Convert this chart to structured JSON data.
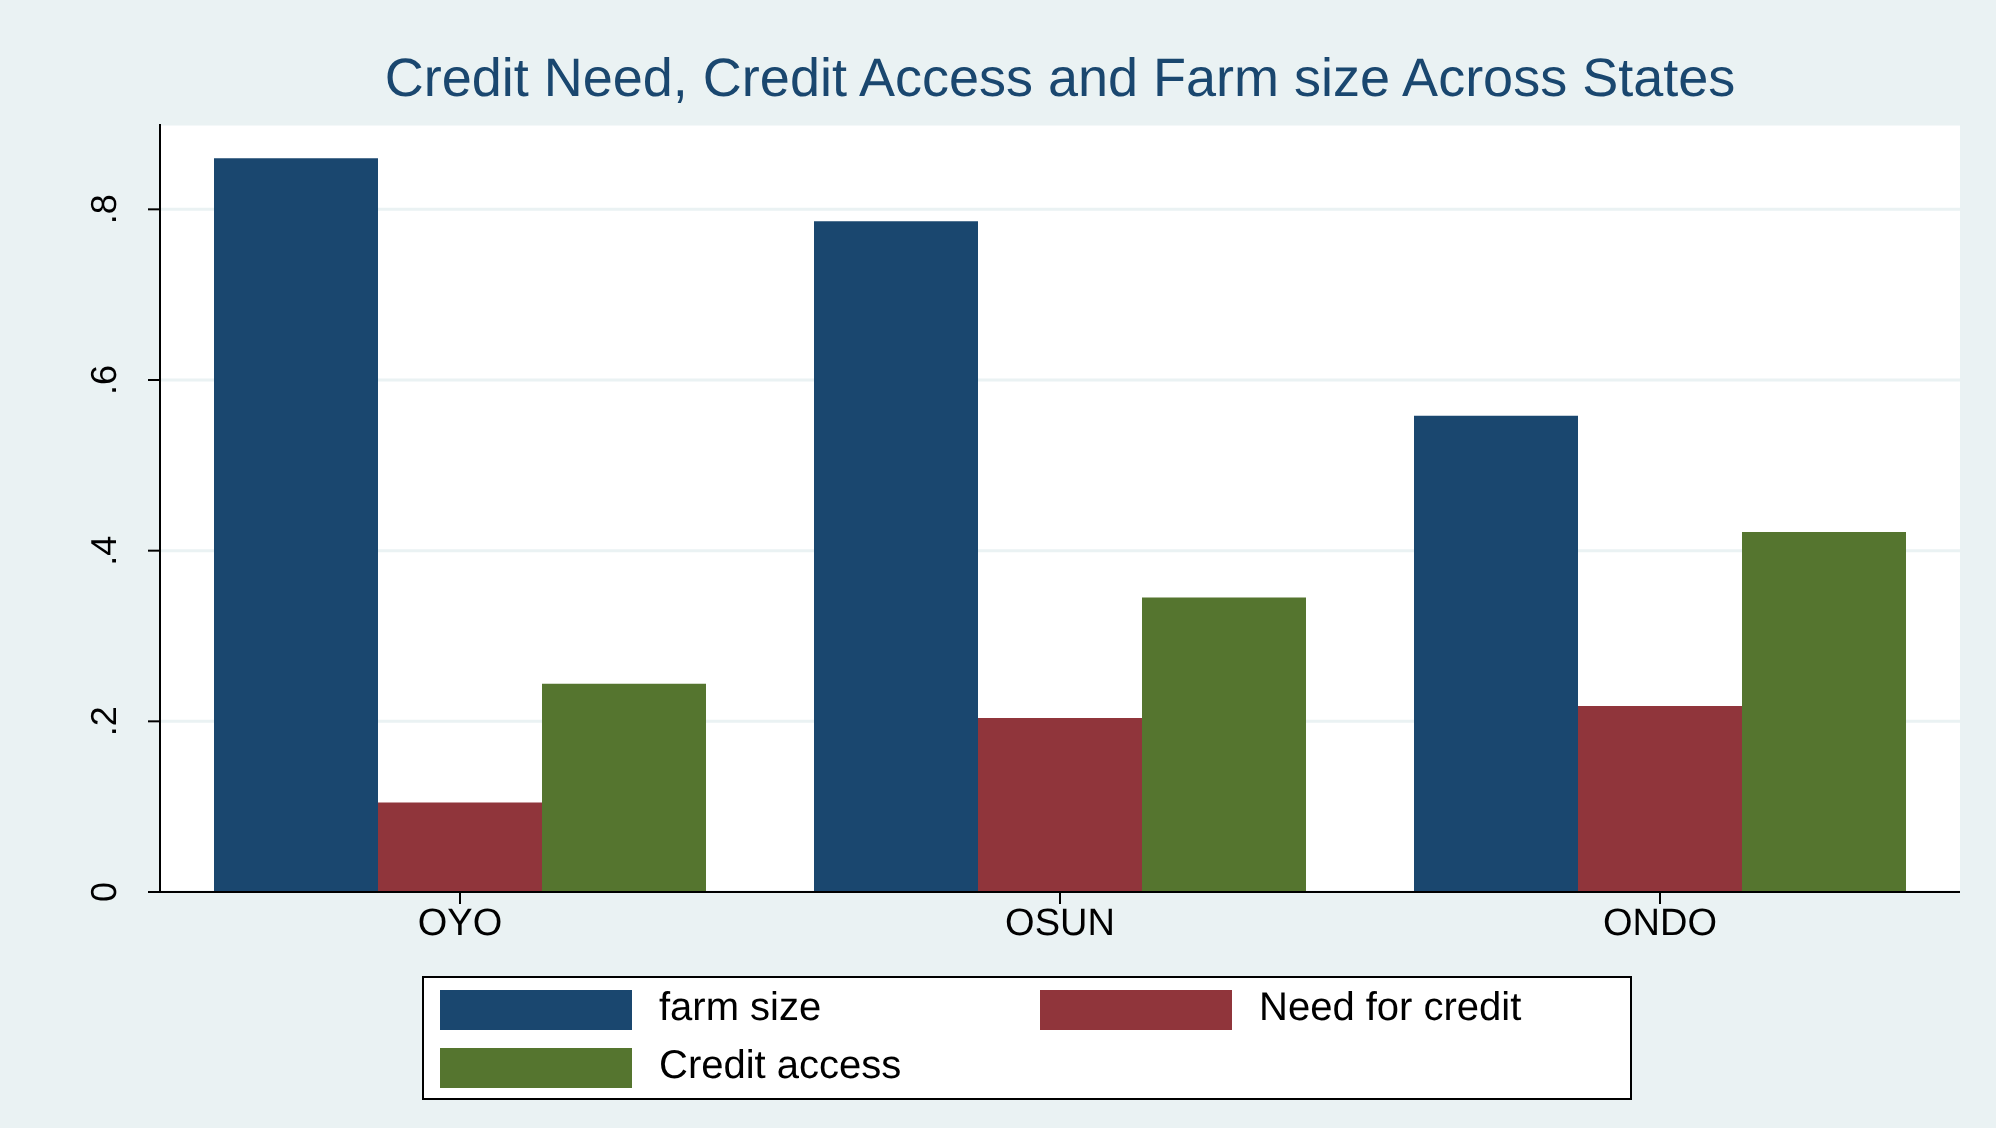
{
  "chart_data": {
    "type": "bar",
    "title": "Credit Need, Credit Access and Farm size Across States",
    "categories": [
      "OYO",
      "OSUN",
      "ONDO"
    ],
    "series": [
      {
        "name": "farm size",
        "color": "#1a476f",
        "values": [
          0.86,
          0.786,
          0.558
        ]
      },
      {
        "name": "Need for credit",
        "color": "#90353b",
        "values": [
          0.105,
          0.204,
          0.218
        ]
      },
      {
        "name": "Credit access",
        "color": "#55752f",
        "values": [
          0.244,
          0.345,
          0.422
        ]
      }
    ],
    "ylim": [
      0,
      0.9
    ],
    "yticks": [
      {
        "value": 0,
        "label": "0"
      },
      {
        "value": 0.2,
        "label": ".2"
      },
      {
        "value": 0.4,
        "label": ".4"
      },
      {
        "value": 0.6,
        "label": ".6"
      },
      {
        "value": 0.8,
        "label": ".8"
      }
    ],
    "grid": "y",
    "legend": "bottom"
  }
}
